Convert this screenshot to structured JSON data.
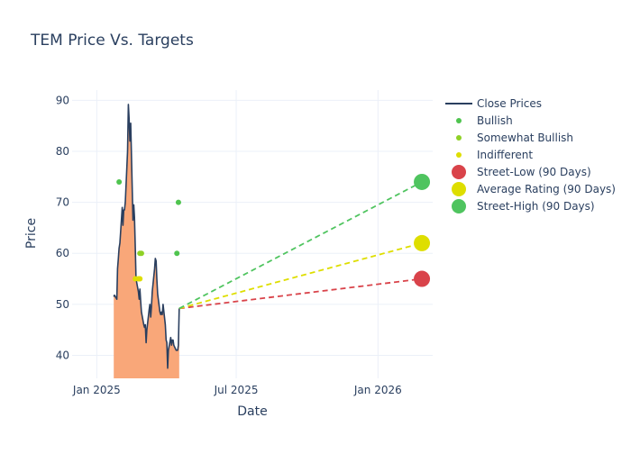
{
  "chart_data": {
    "type": "line",
    "title": "TEM Price Vs. Targets",
    "xlabel": "Date",
    "ylabel": "Price",
    "xlim": [
      "2024-11-30",
      "2026-03-13"
    ],
    "ylim": [
      35.5,
      92
    ],
    "x_ticks": [
      {
        "date": "2025-01-01",
        "label": "Jan 2025"
      },
      {
        "date": "2025-07-01",
        "label": "Jul 2025"
      },
      {
        "date": "2026-01-01",
        "label": "Jan 2026"
      }
    ],
    "y_ticks": [
      40,
      50,
      60,
      70,
      80,
      90
    ],
    "grid": true,
    "legend_position": "right",
    "colors": {
      "close": "#2a3f5f",
      "fill": "#f9a779",
      "bullish": "#4fc44f",
      "somewhat_bullish": "#8fd126",
      "indifferent": "#dede00",
      "street_low": "#d9434a",
      "average": "#dede00",
      "street_high": "#4fc45f"
    },
    "series": [
      {
        "name": "Close Prices",
        "points": [
          [
            "2025-01-23",
            51.5
          ],
          [
            "2025-01-24",
            51.8
          ],
          [
            "2025-01-27",
            51.0
          ],
          [
            "2025-01-28",
            57.0
          ],
          [
            "2025-01-29",
            59.0
          ],
          [
            "2025-01-30",
            61.0
          ],
          [
            "2025-01-31",
            62.0
          ],
          [
            "2025-02-03",
            69.0
          ],
          [
            "2025-02-04",
            65.5
          ],
          [
            "2025-02-05",
            68.5
          ],
          [
            "2025-02-06",
            68.5
          ],
          [
            "2025-02-07",
            70.0
          ],
          [
            "2025-02-10",
            80.0
          ],
          [
            "2025-02-11",
            89.2
          ],
          [
            "2025-02-12",
            86.5
          ],
          [
            "2025-02-13",
            82.0
          ],
          [
            "2025-02-14",
            85.5
          ],
          [
            "2025-02-17",
            66.5
          ],
          [
            "2025-02-18",
            69.5
          ],
          [
            "2025-02-19",
            67.0
          ],
          [
            "2025-02-20",
            61.0
          ],
          [
            "2025-02-21",
            55.0
          ],
          [
            "2025-02-24",
            52.5
          ],
          [
            "2025-02-25",
            51.0
          ],
          [
            "2025-02-26",
            53.0
          ],
          [
            "2025-02-27",
            50.5
          ],
          [
            "2025-02-28",
            48.5
          ],
          [
            "2025-03-03",
            46.0
          ],
          [
            "2025-03-04",
            45.5
          ],
          [
            "2025-03-05",
            46.0
          ],
          [
            "2025-03-06",
            42.5
          ],
          [
            "2025-03-07",
            45.0
          ],
          [
            "2025-03-10",
            49.0
          ],
          [
            "2025-03-11",
            50.0
          ],
          [
            "2025-03-12",
            47.5
          ],
          [
            "2025-03-13",
            49.5
          ],
          [
            "2025-03-14",
            52.5
          ],
          [
            "2025-03-17",
            57.0
          ],
          [
            "2025-03-18",
            59.0
          ],
          [
            "2025-03-19",
            58.5
          ],
          [
            "2025-03-20",
            55.0
          ],
          [
            "2025-03-21",
            52.0
          ],
          [
            "2025-03-24",
            48.5
          ],
          [
            "2025-03-25",
            48.0
          ],
          [
            "2025-03-26",
            48.5
          ],
          [
            "2025-03-27",
            48.0
          ],
          [
            "2025-03-28",
            50.0
          ],
          [
            "2025-03-31",
            46.0
          ],
          [
            "2025-04-01",
            43.0
          ],
          [
            "2025-04-02",
            42.5
          ],
          [
            "2025-04-03",
            37.5
          ],
          [
            "2025-04-04",
            41.0
          ],
          [
            "2025-04-07",
            43.5
          ],
          [
            "2025-04-08",
            42.0
          ],
          [
            "2025-04-09",
            43.0
          ],
          [
            "2025-04-10",
            43.0
          ],
          [
            "2025-04-11",
            42.0
          ],
          [
            "2025-04-14",
            41.0
          ],
          [
            "2025-04-15",
            41.0
          ],
          [
            "2025-04-16",
            41.0
          ],
          [
            "2025-04-17",
            42.0
          ],
          [
            "2025-04-18",
            49.2
          ]
        ]
      },
      {
        "name": "Bullish",
        "points": [
          [
            "2025-01-30",
            74.0
          ],
          [
            "2025-04-15",
            60.0
          ],
          [
            "2025-04-17",
            70.0
          ]
        ]
      },
      {
        "name": "Somewhat Bullish",
        "points": [
          [
            "2025-02-26",
            60.0
          ],
          [
            "2025-02-28",
            60.0
          ]
        ]
      },
      {
        "name": "Indifferent",
        "points": [
          [
            "2025-02-20",
            55.0
          ],
          [
            "2025-02-24",
            55.0
          ],
          [
            "2025-02-26",
            55.0
          ]
        ]
      },
      {
        "name": "Street-Low (90 Days)",
        "points": [
          [
            "2025-04-18",
            49.2
          ],
          [
            "2026-02-27",
            55.0
          ]
        ]
      },
      {
        "name": "Average Rating (90 Days)",
        "points": [
          [
            "2025-04-18",
            49.2
          ],
          [
            "2026-02-27",
            62.0
          ]
        ]
      },
      {
        "name": "Street-High (90 Days)",
        "points": [
          [
            "2025-04-18",
            49.2
          ],
          [
            "2026-02-27",
            74.0
          ]
        ]
      }
    ]
  }
}
